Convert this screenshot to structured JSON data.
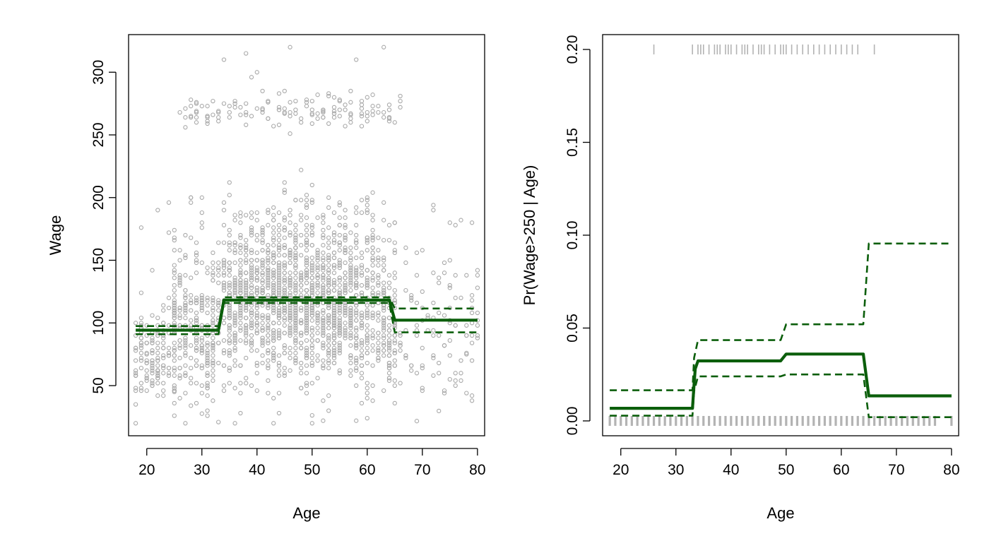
{
  "colors": {
    "points": "#a9a9a9",
    "rug": "#b3b3b3",
    "fit": "#0b5e0b",
    "frame": "#000000"
  },
  "chart_data": [
    {
      "type": "scatter",
      "title": "",
      "xlabel": "Age",
      "ylabel": "Wage",
      "xlim": [
        16.7,
        81.3
      ],
      "ylim": [
        10,
        330
      ],
      "xticks": [
        "20",
        "30",
        "40",
        "50",
        "60",
        "70",
        "80"
      ],
      "yticks": [
        "50",
        "100",
        "150",
        "200",
        "250",
        "300"
      ],
      "grid": false,
      "legend": "none",
      "scatter_description": "About 3000 observed (Age, Wage) points, ages 18 to 80; a main cloud mostly between 20 and 200 and a separate high-earner band around 255 to 320 between ages 26 and 66.",
      "scatter_points": [
        [
          18,
          20
        ],
        [
          18,
          35
        ],
        [
          18,
          90
        ],
        [
          20,
          75
        ],
        [
          21,
          142
        ],
        [
          22,
          62
        ],
        [
          23,
          110
        ],
        [
          24,
          172
        ],
        [
          25,
          45
        ],
        [
          26,
          268
        ],
        [
          27,
          20
        ],
        [
          28,
          200
        ],
        [
          29,
          150
        ],
        [
          30,
          200
        ],
        [
          31,
          30
        ],
        [
          32,
          277
        ],
        [
          33,
          268
        ],
        [
          34,
          310
        ],
        [
          35,
          268
        ],
        [
          36,
          277
        ],
        [
          37,
          185
        ],
        [
          38,
          315
        ],
        [
          39,
          296
        ],
        [
          40,
          300
        ],
        [
          41,
          285
        ],
        [
          42,
          277
        ],
        [
          43,
          257
        ],
        [
          44,
          270
        ],
        [
          45,
          285
        ],
        [
          46,
          320
        ],
        [
          47,
          277
        ],
        [
          48,
          260
        ],
        [
          49,
          278
        ],
        [
          50,
          210
        ],
        [
          51,
          282
        ],
        [
          52,
          268
        ],
        [
          53,
          281
        ],
        [
          54,
          272
        ],
        [
          55,
          278
        ],
        [
          56,
          270
        ],
        [
          57,
          285
        ],
        [
          58,
          310
        ],
        [
          59,
          257
        ],
        [
          60,
          280
        ],
        [
          61,
          282
        ],
        [
          62,
          268
        ],
        [
          63,
          320
        ],
        [
          64,
          270
        ],
        [
          65,
          180
        ],
        [
          66,
          277
        ],
        [
          67,
          160
        ],
        [
          68,
          120
        ],
        [
          70,
          125
        ],
        [
          72,
          190
        ],
        [
          74,
          148
        ],
        [
          76,
          178
        ],
        [
          78,
          75
        ],
        [
          80,
          90
        ],
        [
          36,
          20
        ],
        [
          43,
          20
        ],
        [
          52,
          22
        ],
        [
          60,
          24
        ],
        [
          65,
          70
        ],
        [
          70,
          48
        ],
        [
          75,
          55
        ],
        [
          79,
          70
        ]
      ],
      "lines": [
        {
          "name": "",
          "style": "solid",
          "x": [
            18,
            33,
            34,
            64,
            65,
            80
          ],
          "y": [
            94.2,
            94.2,
            118.2,
            118.2,
            102.2,
            102.2
          ]
        },
        {
          "name": "",
          "style": "dashed",
          "x": [
            18,
            33,
            34,
            64,
            65,
            80
          ],
          "y": [
            97.5,
            97.5,
            120.5,
            120.5,
            111.5,
            111.5
          ]
        },
        {
          "name": "",
          "style": "dashed",
          "x": [
            18,
            33,
            34,
            64,
            65,
            80
          ],
          "y": [
            91.0,
            91.0,
            116.0,
            116.0,
            92.5,
            92.5
          ]
        }
      ]
    },
    {
      "type": "line",
      "title": "",
      "xlabel": "Age",
      "ylabel": "Pr(Wage>250 | Age)",
      "xlim": [
        16.7,
        81.3
      ],
      "ylim": [
        -0.008,
        0.208
      ],
      "xticks": [
        "20",
        "30",
        "40",
        "50",
        "60",
        "70",
        "80"
      ],
      "yticks": [
        "0.00",
        "0.05",
        "0.10",
        "0.15",
        "0.20"
      ],
      "grid": false,
      "legend": "none",
      "lines": [
        {
          "name": "",
          "style": "solid",
          "x": [
            18,
            33,
            33.3,
            33.5,
            34,
            49,
            50,
            64,
            65,
            80
          ],
          "y": [
            0.0068,
            0.0068,
            0.02,
            0.028,
            0.0323,
            0.0323,
            0.036,
            0.036,
            0.0135,
            0.0135
          ]
        },
        {
          "name": "",
          "style": "dashed",
          "x": [
            18,
            33,
            33.3,
            34,
            49,
            50,
            64,
            65,
            80
          ],
          "y": [
            0.0165,
            0.0165,
            0.034,
            0.0435,
            0.0435,
            0.052,
            0.052,
            0.0955,
            0.0955
          ]
        },
        {
          "name": "",
          "style": "dashed",
          "x": [
            18,
            33,
            33.3,
            34,
            49,
            50,
            64,
            65,
            80
          ],
          "y": [
            0.0028,
            0.0028,
            0.016,
            0.024,
            0.024,
            0.025,
            0.025,
            0.002,
            0.002
          ]
        }
      ],
      "rug_top_x": [
        26,
        33,
        34,
        34.5,
        35,
        36,
        37,
        37.5,
        38,
        39,
        39.5,
        40,
        41,
        42,
        42.5,
        43,
        44,
        45,
        45.5,
        46,
        47,
        48,
        49,
        49.5,
        50,
        51,
        52,
        53,
        54,
        55,
        56,
        57,
        58,
        59,
        60,
        61,
        62,
        63,
        66
      ],
      "rug_bottom_x": [
        18,
        19,
        20,
        21,
        22,
        23,
        24,
        25,
        26,
        27,
        28,
        29,
        30,
        31,
        32,
        33,
        34,
        35,
        36,
        37,
        38,
        39,
        40,
        41,
        42,
        43,
        44,
        45,
        46,
        47,
        48,
        49,
        50,
        51,
        52,
        53,
        54,
        55,
        56,
        57,
        58,
        59,
        60,
        61,
        62,
        63,
        64,
        65,
        66,
        67,
        68,
        69,
        70,
        71,
        72,
        73,
        74,
        75,
        76,
        77,
        80
      ]
    }
  ]
}
